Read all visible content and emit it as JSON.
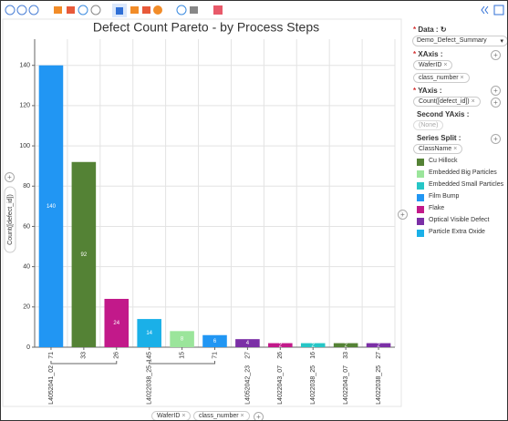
{
  "chart_data": {
    "type": "bar",
    "title": "Defect Count Pareto - by Process Steps",
    "y_label": "Count([defect_id])",
    "x_fields": [
      "WaferID",
      "class_number"
    ],
    "categories": [
      "71",
      "33",
      "26",
      "145",
      "15",
      "71",
      "27",
      "26",
      "16",
      "33",
      "27"
    ],
    "groups": [
      "L4052041_02",
      null,
      null,
      "L4022038_25",
      null,
      null,
      "L4052042_23",
      "L4022043_07",
      "L4022038_25",
      "L4022043_07",
      "L4022038_25"
    ],
    "values": [
      140,
      92,
      24,
      14,
      8,
      6,
      4,
      2,
      2,
      2,
      2
    ],
    "colors": [
      "#2196f3",
      "#548235",
      "#c2198a",
      "#1ab0e8",
      "#9be59b",
      "#2196f3",
      "#7b2fa6",
      "#c2198a",
      "#26c6c6",
      "#548235",
      "#7b2fa6"
    ],
    "ylim": [
      0,
      153
    ],
    "yticks": [
      0,
      20,
      40,
      60,
      80,
      100,
      120,
      140
    ],
    "grid": true
  },
  "panel": {
    "data_label": "Data :",
    "data_value": "Demo_Defect_Summary",
    "xaxis_label": "XAxis :",
    "xaxis_fields": [
      "WaferID",
      "class_number"
    ],
    "yaxis_label": "YAxis :",
    "yaxis_fields": [
      "Count([defect_id])"
    ],
    "y2_label": "Second YAxis :",
    "y2_value": "(None)",
    "split_label": "Series Split :",
    "split_field": "ClassName",
    "legend": [
      {
        "name": "Cu Hillock",
        "color": "#548235"
      },
      {
        "name": "Embedded Big Particles",
        "color": "#9be59b"
      },
      {
        "name": "Embedded Small Particles",
        "color": "#26c6c6"
      },
      {
        "name": "Film Bump",
        "color": "#2196f3"
      },
      {
        "name": "Flake",
        "color": "#c2198a"
      },
      {
        "name": "Optical Visible Defect",
        "color": "#7b2fa6"
      },
      {
        "name": "Particle Extra Oxide",
        "color": "#1ab0e8"
      }
    ]
  }
}
